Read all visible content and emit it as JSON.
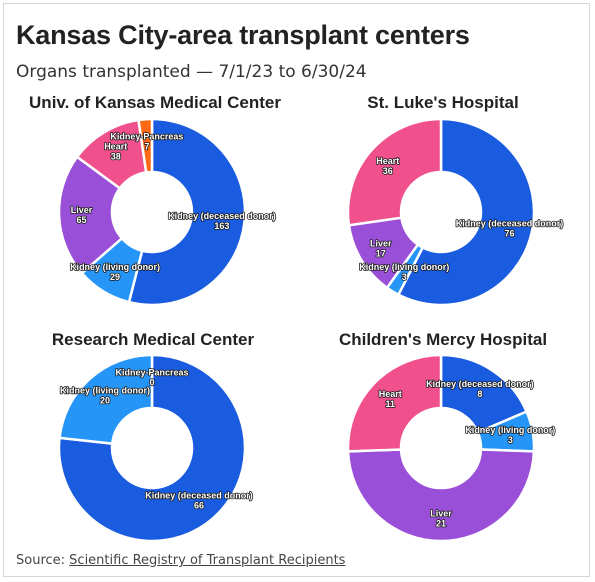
{
  "header": {
    "title": "Kansas City-area transplant centers",
    "subtitle": "Organs transplanted — 7/1/23 to 6/30/24"
  },
  "footer": {
    "source_prefix": "Source: ",
    "source_link": "Scientific Registry of Transplant Recipients"
  },
  "colors": {
    "Kidney (deceased donor)": "#1a5ce0",
    "Kidney (living donor)": "#2596f7",
    "Liver": "#9a4fd8",
    "Heart": "#f0508c",
    "Kidney-Pancreas": "#fd6a16"
  },
  "chart_data": [
    {
      "type": "pie",
      "title": "Univ. of Kansas Medical Center",
      "categories": [
        "Kidney (deceased donor)",
        "Kidney (living donor)",
        "Liver",
        "Heart",
        "Kidney-Pancreas"
      ],
      "values": [
        163,
        29,
        65,
        38,
        7
      ]
    },
    {
      "type": "pie",
      "title": "St. Luke's Hospital",
      "categories": [
        "Kidney (deceased donor)",
        "Kidney (living donor)",
        "Liver",
        "Heart"
      ],
      "values": [
        76,
        3,
        17,
        36
      ]
    },
    {
      "type": "pie",
      "title": "Research Medical Center",
      "categories": [
        "Kidney (deceased donor)",
        "Kidney (living donor)",
        "Kidney-Pancreas"
      ],
      "values": [
        66,
        20,
        0
      ]
    },
    {
      "type": "pie",
      "title": "Children's Mercy Hospital",
      "categories": [
        "Kidney (deceased donor)",
        "Kidney (living donor)",
        "Liver",
        "Heart"
      ],
      "values": [
        8,
        3,
        21,
        11
      ]
    }
  ]
}
